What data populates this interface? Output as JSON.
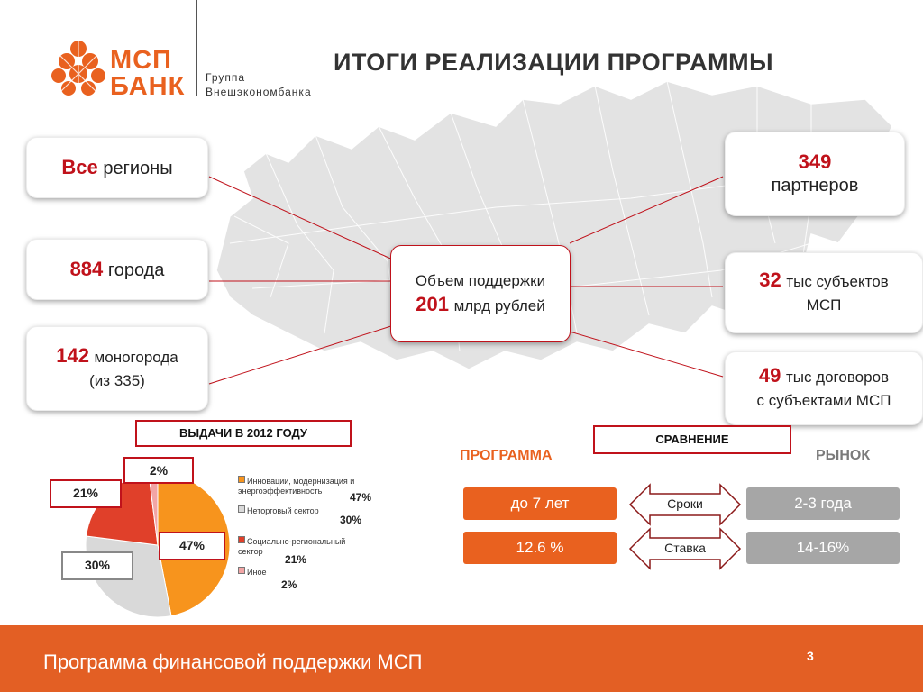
{
  "logo": {
    "brand_line1": "МСП",
    "brand_line2": "БАНК",
    "group_line1": "Группа",
    "group_line2": "Внешэкономбанка",
    "color": "#e9611f"
  },
  "title": "ИТОГИ РЕАЛИЗАЦИИ ПРОГРАММЫ",
  "stats": {
    "regions": {
      "num": "Все",
      "text": "регионы"
    },
    "cities": {
      "num": "884",
      "text": "города"
    },
    "monocities": {
      "num": "142",
      "text": "моногорода",
      "sub": "(из 335)"
    },
    "center": {
      "line1": "Объем поддержки",
      "num": "201",
      "text": "млрд рублей"
    },
    "partners": {
      "num": "349",
      "text": "партнеров"
    },
    "subjects": {
      "num": "32",
      "text": "тыс субъектов",
      "text2": "МСП"
    },
    "contracts": {
      "num": "49",
      "text": "тыс договоров",
      "text2": "с субъектами МСП"
    }
  },
  "issuance": {
    "title": "ВЫДАЧИ В 2012 ГОДУ",
    "legend": [
      {
        "label": "Инновации, модернизация и энергоэффективность",
        "value": "47%",
        "color": "#f7941d"
      },
      {
        "label": "Неторговый сектор",
        "value": "30%",
        "color": "#d9d9d9"
      },
      {
        "label": "Социально-региональный сектор",
        "value": "21%",
        "color": "#e0402a"
      },
      {
        "label": "Иное",
        "value": "2%",
        "color": "#f2a5a5"
      }
    ],
    "callouts": [
      "47%",
      "30%",
      "21%",
      "2%"
    ]
  },
  "chart_data": {
    "type": "pie",
    "title": "ВЫДАЧИ В 2012 ГОДУ",
    "categories": [
      "Инновации, модернизация и энергоэффективность",
      "Неторговый сектор",
      "Социально-региональный сектор",
      "Иное"
    ],
    "values": [
      47,
      30,
      21,
      2
    ],
    "colors": [
      "#f7941d",
      "#d9d9d9",
      "#e0402a",
      "#f2a5a5"
    ],
    "legend": "right"
  },
  "comparison": {
    "title": "СРАВНЕНИЕ",
    "program_header": "ПРОГРАММА",
    "market_header": "РЫНОК",
    "rows": [
      {
        "label": "Сроки",
        "program": "до 7 лет",
        "market": "2-3 года"
      },
      {
        "label": "Ставка",
        "program": "12.6 %",
        "market": "14-16%"
      }
    ],
    "program_color": "#e9611f",
    "market_color": "#a6a6a6"
  },
  "footer": {
    "text": "Программа финансовой поддержки МСП",
    "page": "3",
    "color": "#e35f24"
  }
}
